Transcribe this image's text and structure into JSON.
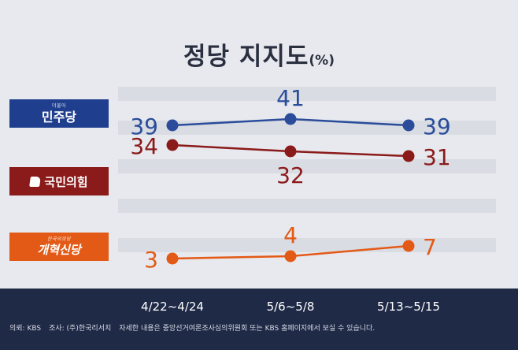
{
  "title": "정당 지지도",
  "title_unit": "(%)",
  "chart_data": {
    "type": "line",
    "categories": [
      "4/22~4/24",
      "5/6~5/8",
      "5/13~5/15"
    ],
    "unit": "%",
    "series": [
      {
        "name": "민주당",
        "name_prefix": "더불어",
        "color": "#2a4c9a",
        "values": [
          39,
          41,
          39
        ]
      },
      {
        "name": "국민의힘",
        "color": "#8b1a1a",
        "values": [
          34,
          32,
          31
        ]
      },
      {
        "name": "개혁신당",
        "name_prefix": "한국의희망",
        "color": "#e35a16",
        "values": [
          3,
          4,
          7
        ]
      }
    ],
    "grid": true,
    "legend": "left"
  },
  "footer": {
    "client": "의뢰: KBS",
    "pollster": "조사: (주)한국리서치",
    "notice": "자세한 내용은 중앙선거여론조사심의위원회 또는 KBS 홈페이지에서 보실 수 있습니다."
  },
  "colors": {
    "background": "#e7e9ee",
    "footer_bg": "#1f2a47",
    "title": "#2b3040"
  }
}
